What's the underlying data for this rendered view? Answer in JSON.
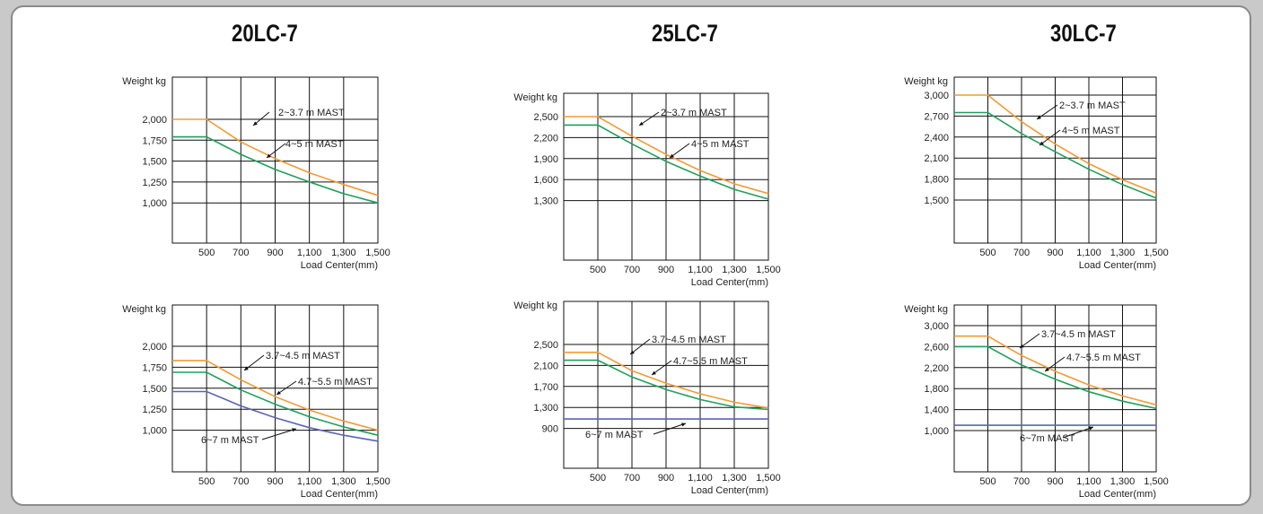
{
  "colors": {
    "orange": "#f39a33",
    "green": "#1fa05a",
    "blue": "#5a64b4",
    "grid": "#111111"
  },
  "models": [
    "20LC-7",
    "25LC-7",
    "30LC-7"
  ],
  "chart_data": [
    {
      "id": "20lc7-top",
      "type": "line",
      "ylabel": "Weight  kg",
      "xlabel": "Load Center(mm)",
      "x_ticks": [
        "500",
        "700",
        "900",
        "1,100",
        "1,300",
        "1,500"
      ],
      "y_ticks": [
        "2,000",
        "1,750",
        "1,500",
        "1,250",
        "1,000"
      ],
      "series": [
        {
          "name": "2~3.7 m MAST",
          "color": "orange",
          "x": [
            300,
            500,
            700,
            900,
            1100,
            1300,
            1500
          ],
          "y": [
            2000,
            2000,
            1730,
            1530,
            1360,
            1220,
            1090
          ]
        },
        {
          "name": "4~5 m MAST",
          "color": "green",
          "x": [
            300,
            500,
            700,
            900,
            1100,
            1300,
            1500
          ],
          "y": [
            1790,
            1790,
            1580,
            1400,
            1250,
            1110,
            1000
          ]
        }
      ]
    },
    {
      "id": "25lc7-top",
      "type": "line",
      "ylabel": "Weight  kg",
      "xlabel": "Load Center(mm)",
      "x_ticks": [
        "500",
        "700",
        "900",
        "1,100",
        "1,300",
        "1,500"
      ],
      "y_ticks": [
        "2,500",
        "2,200",
        "1,900",
        "1,600",
        "1,300"
      ],
      "series": [
        {
          "name": "2~3.7 m MAST",
          "color": "orange",
          "x": [
            300,
            500,
            700,
            900,
            1100,
            1300,
            1500
          ],
          "y": [
            2500,
            2500,
            2220,
            1960,
            1730,
            1540,
            1400
          ]
        },
        {
          "name": "4~5 m MAST",
          "color": "green",
          "x": [
            300,
            500,
            700,
            900,
            1100,
            1300,
            1500
          ],
          "y": [
            2380,
            2380,
            2110,
            1860,
            1650,
            1460,
            1320
          ]
        }
      ]
    },
    {
      "id": "30lc7-top",
      "type": "line",
      "ylabel": "Weight  kg",
      "xlabel": "Load Center(mm)",
      "x_ticks": [
        "500",
        "700",
        "900",
        "1,100",
        "1,300",
        "1,500"
      ],
      "y_ticks": [
        "3,000",
        "2,700",
        "2,400",
        "2,100",
        "1,800",
        "1,500"
      ],
      "series": [
        {
          "name": "2~3.7 m MAST",
          "color": "orange",
          "x": [
            300,
            500,
            700,
            900,
            1100,
            1300,
            1500
          ],
          "y": [
            3000,
            3000,
            2620,
            2300,
            2020,
            1790,
            1600
          ]
        },
        {
          "name": "4~5 m MAST",
          "color": "green",
          "x": [
            300,
            500,
            700,
            900,
            1100,
            1300,
            1500
          ],
          "y": [
            2750,
            2750,
            2450,
            2190,
            1940,
            1720,
            1530
          ]
        }
      ]
    },
    {
      "id": "20lc7-bottom",
      "type": "line",
      "ylabel": "Weight  kg",
      "xlabel": "Load Center(mm)",
      "x_ticks": [
        "500",
        "700",
        "900",
        "1,100",
        "1,300",
        "1,500"
      ],
      "y_ticks": [
        "2,000",
        "1,750",
        "1,500",
        "1,250",
        "1,000"
      ],
      "series": [
        {
          "name": "3.7~4.5 m MAST",
          "color": "orange",
          "x": [
            300,
            500,
            700,
            900,
            1100,
            1300,
            1500
          ],
          "y": [
            1830,
            1830,
            1600,
            1400,
            1240,
            1110,
            1000
          ]
        },
        {
          "name": "4.7~5.5 m MAST",
          "color": "green",
          "x": [
            300,
            500,
            700,
            900,
            1100,
            1300,
            1500
          ],
          "y": [
            1690,
            1690,
            1480,
            1310,
            1160,
            1040,
            940
          ]
        },
        {
          "name": "6~7 m MAST",
          "color": "blue",
          "x": [
            300,
            500,
            700,
            900,
            1100,
            1300,
            1500
          ],
          "y": [
            1460,
            1460,
            1290,
            1150,
            1030,
            940,
            870
          ]
        }
      ]
    },
    {
      "id": "25lc7-bottom",
      "type": "line",
      "ylabel": "Weight  kg",
      "xlabel": "Load Center(mm)",
      "x_ticks": [
        "500",
        "700",
        "900",
        "1,100",
        "1,300",
        "1,500"
      ],
      "y_ticks": [
        "2,500",
        "2,100",
        "1,700",
        "1,300",
        "900"
      ],
      "series": [
        {
          "name": "3.7~4.5 m MAST",
          "color": "orange",
          "x": [
            300,
            500,
            700,
            900,
            1100,
            1300,
            1500
          ],
          "y": [
            2350,
            2350,
            2000,
            1760,
            1560,
            1400,
            1290
          ]
        },
        {
          "name": "4.7~5.5 m MAST",
          "color": "green",
          "x": [
            300,
            500,
            700,
            900,
            1100,
            1300,
            1500
          ],
          "y": [
            2200,
            2200,
            1880,
            1640,
            1450,
            1310,
            1260
          ]
        },
        {
          "name": "6~7 m MAST",
          "color": "blue",
          "x": [
            300,
            1500
          ],
          "y": [
            1080,
            1080
          ]
        }
      ]
    },
    {
      "id": "30lc7-bottom",
      "type": "line",
      "ylabel": "Weight  kg",
      "xlabel": "Load Center(mm)",
      "x_ticks": [
        "500",
        "700",
        "900",
        "1,100",
        "1,300",
        "1,500"
      ],
      "y_ticks": [
        "3,000",
        "2,600",
        "2,200",
        "1,800",
        "1,400",
        "1,000"
      ],
      "series": [
        {
          "name": "3.7~4.5 m MAST",
          "color": "orange",
          "x": [
            300,
            500,
            700,
            900,
            1100,
            1300,
            1500
          ],
          "y": [
            2800,
            2800,
            2430,
            2130,
            1870,
            1660,
            1490
          ]
        },
        {
          "name": "4.7~5.5 m MAST",
          "color": "green",
          "x": [
            300,
            500,
            700,
            900,
            1100,
            1300,
            1500
          ],
          "y": [
            2600,
            2600,
            2250,
            1980,
            1740,
            1560,
            1420
          ]
        },
        {
          "name": "6~7m MAST",
          "color": "blue",
          "x": [
            300,
            1500
          ],
          "y": [
            1100,
            1100
          ]
        }
      ]
    }
  ]
}
